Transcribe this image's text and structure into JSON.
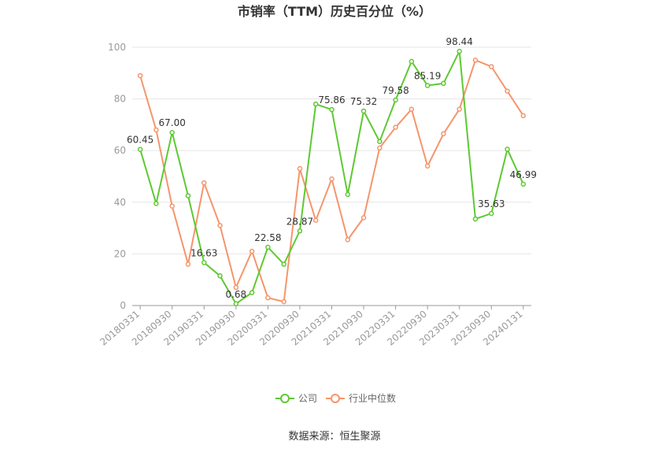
{
  "chart_data": {
    "type": "line",
    "title": "市销率（TTM）历史百分位（%）",
    "source": "数据来源：恒生聚源",
    "ylim": [
      0,
      100
    ],
    "yticks": [
      0,
      20,
      40,
      60,
      80,
      100
    ],
    "grid": true,
    "legend_position": "bottom-center",
    "x": [
      "20180331",
      "20180630",
      "20180930",
      "20181231",
      "20190331",
      "20190630",
      "20190930",
      "20191231",
      "20200331",
      "20200630",
      "20200930",
      "20201231",
      "20210331",
      "20210630",
      "20210930",
      "20211231",
      "20220331",
      "20220630",
      "20220930",
      "20221231",
      "20230331",
      "20230630",
      "20230930",
      "20231231",
      "20240131"
    ],
    "xtick_labels": [
      "20180331",
      "20180930",
      "20190331",
      "20190930",
      "20200331",
      "20200930",
      "20210331",
      "20210930",
      "20220331",
      "20220930",
      "20230331",
      "20230930",
      "20240131"
    ],
    "xtick_indices": [
      0,
      2,
      4,
      6,
      8,
      10,
      12,
      14,
      16,
      18,
      20,
      22,
      24
    ],
    "series": [
      {
        "name": "公司",
        "color": "#5ec932",
        "values": [
          60.45,
          39.5,
          67.0,
          42.5,
          16.63,
          11.5,
          0.68,
          5.0,
          22.58,
          16.0,
          28.87,
          78.0,
          75.86,
          43.0,
          75.32,
          63.5,
          79.58,
          94.5,
          85.19,
          86.0,
          98.44,
          33.5,
          35.63,
          60.5,
          46.99
        ],
        "labels": {
          "0": "60.45",
          "2": "67.00",
          "4": "16.63",
          "6": "0.68",
          "8": "22.58",
          "10": "28.87",
          "12": "75.86",
          "14": "75.32",
          "16": "79.58",
          "18": "85.19",
          "20": "98.44",
          "22": "35.63",
          "24": "46.99"
        }
      },
      {
        "name": "行业中位数",
        "color": "#f5956b",
        "values": [
          89.0,
          68.0,
          38.5,
          16.0,
          47.5,
          31.0,
          7.0,
          21.0,
          3.0,
          1.5,
          53.0,
          33.0,
          49.0,
          25.5,
          34.0,
          61.0,
          69.0,
          76.0,
          54.0,
          66.5,
          76.0,
          95.0,
          92.5,
          83.0,
          73.5
        ]
      }
    ]
  }
}
